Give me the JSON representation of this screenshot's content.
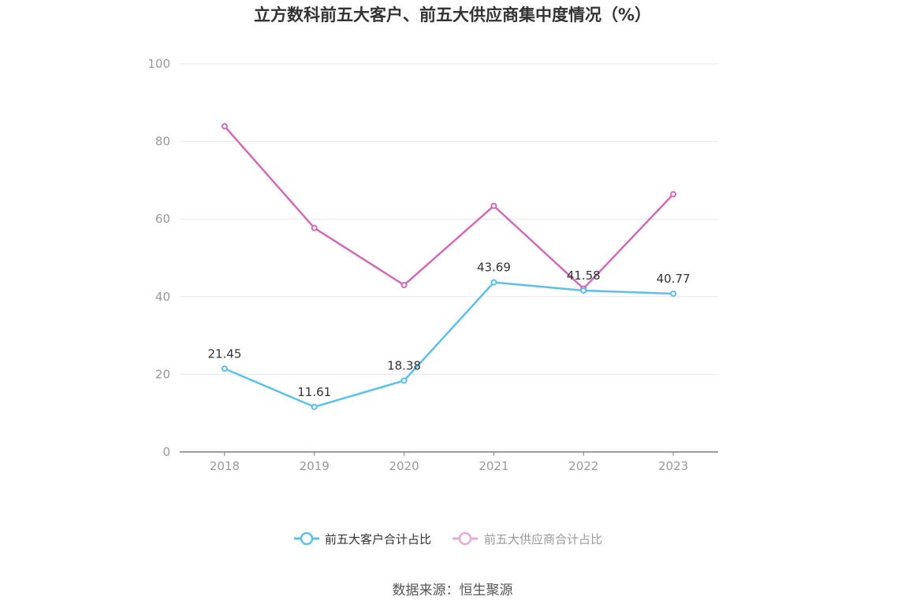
{
  "chart_data": {
    "type": "line",
    "title": "立方数科前五大客户、前五大供应商集中度情况（%）",
    "xlabel": "",
    "ylabel": "",
    "categories": [
      "2018",
      "2019",
      "2020",
      "2021",
      "2022",
      "2023"
    ],
    "ylim": [
      0,
      100
    ],
    "yticks": [
      0,
      20,
      40,
      60,
      80,
      100
    ],
    "grid": true,
    "legend_position": "bottom",
    "series": [
      {
        "name": "前五大客户合计占比",
        "values": [
          21.45,
          11.61,
          18.38,
          43.69,
          41.58,
          40.77
        ],
        "labels": [
          "21.45",
          "11.61",
          "18.38",
          "43.69",
          "41.58",
          "40.77"
        ],
        "color": "#5bc0eb"
      },
      {
        "name": "前五大供应商合计占比",
        "values": [
          83.9,
          57.7,
          43.0,
          63.4,
          42.1,
          66.4
        ],
        "color": "#d26bb5"
      }
    ]
  },
  "source": "数据来源：恒生聚源",
  "colors": {
    "grid": "#e6e9ef",
    "axis": "#7a7f8c",
    "tick_text": "#999999",
    "legend_inactive": "#999999",
    "legend_active": "#333333"
  }
}
